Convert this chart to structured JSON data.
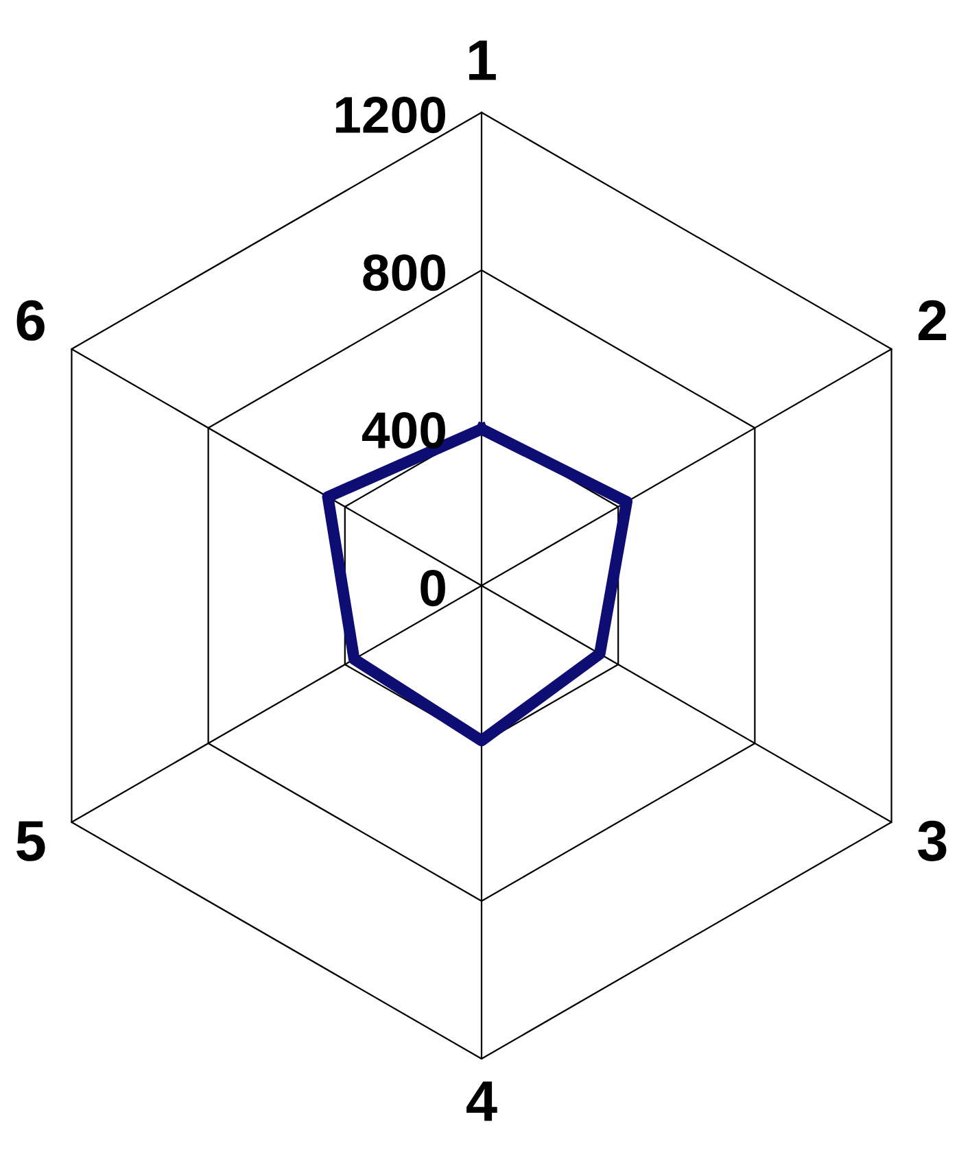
{
  "chart_data": {
    "type": "radar",
    "categories": [
      "1",
      "2",
      "3",
      "4",
      "5",
      "6"
    ],
    "series": [
      {
        "color": "#0d0d73",
        "values": [
          397,
          425,
          346,
          393,
          373,
          450
        ]
      }
    ],
    "ylim": [
      0,
      1200
    ],
    "yticks": [
      0,
      400,
      800,
      1200
    ],
    "grid": true,
    "marker": "none",
    "line_style": "solid"
  }
}
